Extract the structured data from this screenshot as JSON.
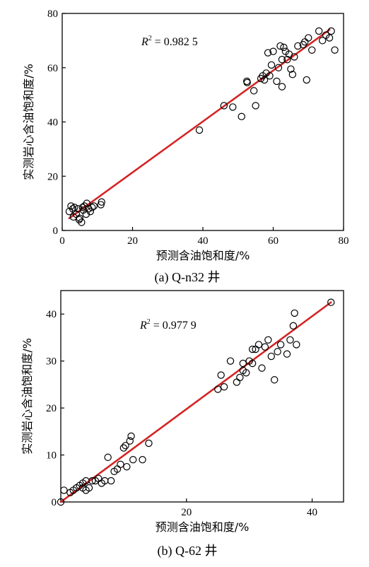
{
  "chart_data": [
    {
      "type": "scatter",
      "caption": "(a) Q-n32 井",
      "xlabel": "预测含油饱和度/%",
      "ylabel": "实测岩心含油饱和度/%",
      "annotation": {
        "r2_label": "R",
        "r2_sup": "2",
        "r2_value": " = 0.982 5"
      },
      "xlim": [
        0,
        80
      ],
      "ylim": [
        0,
        80
      ],
      "xticks": [
        0,
        20,
        40,
        60,
        80
      ],
      "yticks": [
        0,
        20,
        40,
        60,
        80
      ],
      "x_origin_label": "0",
      "fit_line": {
        "x": [
          2,
          76
        ],
        "y": [
          4.5,
          74
        ],
        "color": "#d42424"
      },
      "points": [
        [
          2,
          7
        ],
        [
          2.5,
          9
        ],
        [
          3,
          8
        ],
        [
          3.2,
          5
        ],
        [
          3.5,
          8.5
        ],
        [
          4,
          6
        ],
        [
          4.5,
          8
        ],
        [
          4.8,
          4
        ],
        [
          5,
          4.5
        ],
        [
          5.5,
          3
        ],
        [
          5.8,
          8.5
        ],
        [
          6,
          7.5
        ],
        [
          6.3,
          9
        ],
        [
          6.8,
          6
        ],
        [
          7,
          10
        ],
        [
          7.5,
          8
        ],
        [
          8,
          7
        ],
        [
          8.5,
          8.5
        ],
        [
          9,
          9
        ],
        [
          11,
          9.5
        ],
        [
          11.2,
          10.5
        ],
        [
          39,
          37
        ],
        [
          46,
          46
        ],
        [
          48.5,
          45.5
        ],
        [
          51,
          42
        ],
        [
          52.5,
          55
        ],
        [
          52.6,
          54.5
        ],
        [
          54.5,
          51.5
        ],
        [
          55,
          46
        ],
        [
          56.5,
          56
        ],
        [
          57,
          57
        ],
        [
          57.5,
          55.5
        ],
        [
          58,
          58
        ],
        [
          58.5,
          65.5
        ],
        [
          59,
          57
        ],
        [
          59.5,
          61
        ],
        [
          60,
          66
        ],
        [
          61,
          55
        ],
        [
          61.5,
          60
        ],
        [
          62,
          68
        ],
        [
          62.5,
          53
        ],
        [
          62.5,
          63
        ],
        [
          63,
          67.5
        ],
        [
          63.5,
          66
        ],
        [
          64,
          63
        ],
        [
          64.5,
          65
        ],
        [
          65,
          59.5
        ],
        [
          65.5,
          57.5
        ],
        [
          66,
          64
        ],
        [
          67,
          68
        ],
        [
          68.5,
          68.5
        ],
        [
          69,
          69.5
        ],
        [
          69.5,
          55.5
        ],
        [
          70,
          71
        ],
        [
          71,
          66.5
        ],
        [
          73,
          73.5
        ],
        [
          74,
          70
        ],
        [
          75,
          72
        ],
        [
          76,
          71
        ],
        [
          76.5,
          73.5
        ],
        [
          77.5,
          66.5
        ]
      ]
    },
    {
      "type": "scatter",
      "caption": "(b) Q-62 井",
      "xlabel": "预测含油饱和度/%",
      "ylabel": "实测岩心含油饱和度/%",
      "annotation": {
        "r2_label": "R",
        "r2_sup": "2",
        "r2_value": " = 0.977 9"
      },
      "xlim": [
        0,
        45
      ],
      "ylim": [
        0,
        45
      ],
      "xticks": [
        0,
        20,
        40
      ],
      "yticks": [
        0,
        10,
        20,
        30,
        40
      ],
      "x_origin_label": "",
      "fit_line": {
        "x": [
          0,
          43
        ],
        "y": [
          0,
          42.5
        ],
        "color": "#d42424"
      },
      "points": [
        [
          0,
          0
        ],
        [
          0.5,
          2.5
        ],
        [
          1.5,
          2
        ],
        [
          2,
          2.5
        ],
        [
          2.5,
          3
        ],
        [
          3,
          3.5
        ],
        [
          3.5,
          4
        ],
        [
          3.5,
          3
        ],
        [
          4,
          2.5
        ],
        [
          4,
          4.5
        ],
        [
          4.5,
          3
        ],
        [
          5,
          4.5
        ],
        [
          5.5,
          4.5
        ],
        [
          6,
          5
        ],
        [
          6.5,
          4
        ],
        [
          7,
          4.5
        ],
        [
          7.5,
          9.5
        ],
        [
          8,
          4.5
        ],
        [
          8.5,
          6.5
        ],
        [
          9,
          7
        ],
        [
          9.5,
          8
        ],
        [
          10,
          11.5
        ],
        [
          10.3,
          12
        ],
        [
          10.5,
          7.5
        ],
        [
          11,
          13
        ],
        [
          11.2,
          14
        ],
        [
          11.5,
          9
        ],
        [
          13,
          9
        ],
        [
          14,
          12.5
        ],
        [
          25,
          24
        ],
        [
          25.5,
          27
        ],
        [
          26,
          24.5
        ],
        [
          27,
          30
        ],
        [
          28,
          25.5
        ],
        [
          28.5,
          26.5
        ],
        [
          29,
          29.5
        ],
        [
          29,
          28
        ],
        [
          29.5,
          27.5
        ],
        [
          30,
          30
        ],
        [
          30.5,
          32.5
        ],
        [
          30.5,
          29.5
        ],
        [
          31,
          32.5
        ],
        [
          31.5,
          33.5
        ],
        [
          32,
          28.5
        ],
        [
          32.5,
          33
        ],
        [
          33,
          34.5
        ],
        [
          33.5,
          31
        ],
        [
          34,
          26
        ],
        [
          34.5,
          32
        ],
        [
          35,
          33.5
        ],
        [
          36,
          31.5
        ],
        [
          36.5,
          34.5
        ],
        [
          37,
          37.5
        ],
        [
          37.2,
          40.2
        ],
        [
          37.5,
          33.5
        ],
        [
          43,
          42.5
        ]
      ]
    }
  ]
}
